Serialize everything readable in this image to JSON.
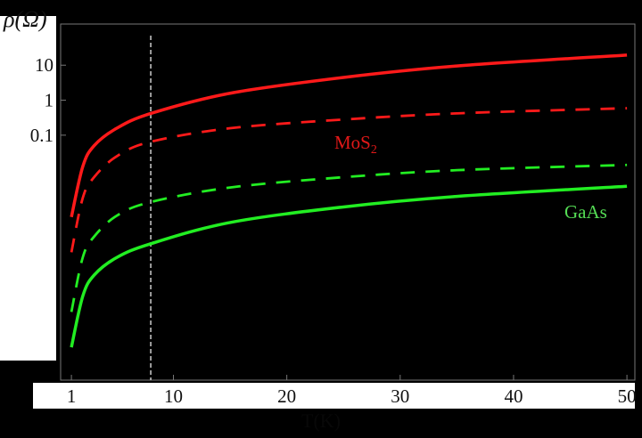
{
  "chart_data": {
    "type": "line",
    "title": "",
    "xlabel": "T(K)",
    "ylabel": "ρ(Ω)",
    "xlim": [
      0.05,
      50.7
    ],
    "ylim": [
      1e-08,
      150
    ],
    "y_scale": "log",
    "x_ticks": [
      "1",
      "10",
      "20",
      "30",
      "40",
      "50"
    ],
    "x_tick_values": [
      1,
      10,
      20,
      30,
      40,
      50
    ],
    "y_ticks": [
      "10",
      "1",
      "0.1"
    ],
    "y_tick_values": [
      10,
      1,
      0.1
    ],
    "grid": false,
    "background": "#000000",
    "vertical_marker": {
      "x": 8,
      "style": "dashed",
      "color": "#cccccc"
    },
    "x": [
      1,
      2,
      3,
      5,
      8,
      15,
      25,
      35,
      50
    ],
    "series": [
      {
        "material": "MoS2",
        "style": "solid",
        "color": "#ff1a1a",
        "values": [
          0.00046,
          0.0126,
          0.05,
          0.158,
          0.417,
          1.58,
          4.47,
          9.5,
          19.5
        ]
      },
      {
        "material": "MoS2",
        "style": "dashed",
        "color": "#ff1a1a",
        "values": [
          4.5e-05,
          0.0016,
          0.0063,
          0.025,
          0.065,
          0.158,
          0.28,
          0.42,
          0.59
        ]
      },
      {
        "material": "GaAs",
        "style": "dashed",
        "color": "#22ee22",
        "values": [
          8.9e-07,
          3.2e-05,
          0.000126,
          0.0005,
          0.00123,
          0.0032,
          0.0063,
          0.01,
          0.0141
        ]
      },
      {
        "material": "GaAs",
        "style": "solid",
        "color": "#22ee22",
        "values": [
          8.7e-08,
          2.5e-06,
          1e-05,
          3.2e-05,
          7.9e-05,
          0.00032,
          0.00089,
          0.00178,
          0.00347
        ]
      }
    ],
    "annotations": [
      {
        "text": "MoS",
        "sub": "2",
        "color": "#e01818"
      },
      {
        "text": "GaAs",
        "sub": "",
        "color": "#55dd55"
      }
    ]
  }
}
